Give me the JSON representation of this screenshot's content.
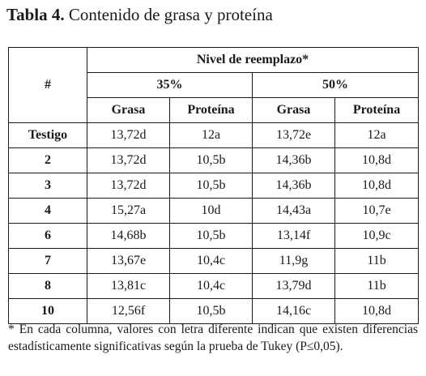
{
  "title": {
    "label": "Tabla 4.",
    "text": "Contenido de grasa y proteína"
  },
  "table": {
    "row_header": "#",
    "group_header": "Nivel de reemplazo*",
    "levels": [
      "35%",
      "50%"
    ],
    "subheaders": [
      "Grasa",
      "Proteína",
      "Grasa",
      "Proteína"
    ],
    "rows": [
      {
        "label": "Testigo",
        "values": [
          "13,72d",
          "12a",
          "13,72e",
          "12a"
        ]
      },
      {
        "label": "2",
        "values": [
          "13,72d",
          "10,5b",
          "14,36b",
          "10,8d"
        ]
      },
      {
        "label": "3",
        "values": [
          "13,72d",
          "10,5b",
          "14,36b",
          "10,8d"
        ]
      },
      {
        "label": "4",
        "values": [
          "15,27a",
          "10d",
          "14,43a",
          "10,7e"
        ]
      },
      {
        "label": "6",
        "values": [
          "14,68b",
          "10,5b",
          "13,14f",
          "10,9c"
        ]
      },
      {
        "label": "7",
        "values": [
          "13,67e",
          "10,4c",
          "11,9g",
          "11b"
        ]
      },
      {
        "label": "8",
        "values": [
          "13,81c",
          "10,4c",
          "13,79d",
          "11b"
        ]
      },
      {
        "label": "10",
        "values": [
          "12,56f",
          "10,5b",
          "14,16c",
          "10,8d"
        ]
      }
    ]
  },
  "footnote": "* En cada columna, valores con letra diferente indican que existen diferencias estadísticamente significativas según la prueba de Tukey (P≤0,05)."
}
